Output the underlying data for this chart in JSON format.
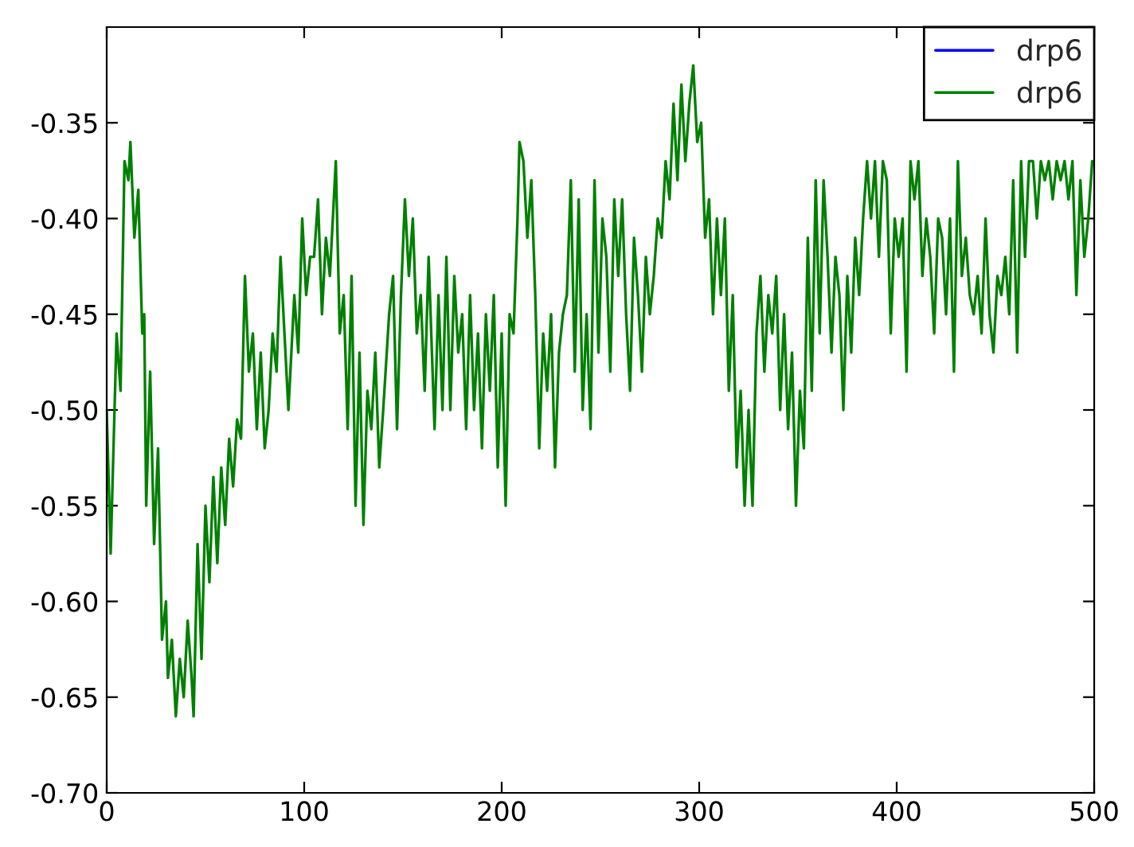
{
  "chart_data": {
    "type": "line",
    "x": [
      0,
      2,
      5,
      7,
      9,
      11,
      12,
      14,
      16,
      18,
      19,
      20,
      22,
      24,
      26,
      28,
      30,
      31,
      33,
      35,
      37,
      39,
      41,
      43,
      44,
      46,
      48,
      50,
      52,
      54,
      56,
      58,
      60,
      62,
      64,
      66,
      68,
      70,
      72,
      74,
      76,
      78,
      80,
      82,
      84,
      86,
      88,
      90,
      92,
      95,
      97,
      99,
      101,
      103,
      105,
      107,
      109,
      111,
      113,
      116,
      118,
      120,
      122,
      124,
      126,
      128,
      130,
      132,
      134,
      136,
      138,
      140,
      143,
      145,
      147,
      149,
      151,
      153,
      155,
      157,
      159,
      161,
      163,
      166,
      168,
      170,
      172,
      174,
      176,
      178,
      180,
      182,
      184,
      186,
      188,
      190,
      192,
      194,
      196,
      198,
      200,
      202,
      204,
      206,
      208,
      209,
      211,
      213,
      215,
      217,
      219,
      221,
      223,
      225,
      227,
      229,
      231,
      233,
      235,
      237,
      239,
      241,
      243,
      245,
      247,
      249,
      251,
      253,
      255,
      257,
      259,
      261,
      263,
      265,
      267,
      269,
      271,
      273,
      275,
      277,
      279,
      281,
      283,
      285,
      287,
      289,
      291,
      293,
      295,
      297,
      299,
      301,
      303,
      305,
      307,
      309,
      311,
      313,
      315,
      317,
      319,
      321,
      323,
      325,
      327,
      329,
      331,
      333,
      335,
      337,
      339,
      341,
      343,
      345,
      347,
      349,
      351,
      353,
      355,
      357,
      359,
      361,
      363,
      365,
      367,
      369,
      371,
      373,
      375,
      377,
      379,
      381,
      383,
      385,
      387,
      389,
      391,
      393,
      395,
      397,
      399,
      401,
      403,
      405,
      407,
      409,
      411,
      413,
      415,
      417,
      419,
      421,
      423,
      425,
      427,
      429,
      431,
      433,
      435,
      437,
      439,
      441,
      443,
      445,
      447,
      449,
      451,
      453,
      455,
      457,
      459,
      461,
      463,
      465,
      467,
      469,
      471,
      473,
      475,
      477,
      479,
      481,
      483,
      485,
      487,
      489,
      491,
      493,
      495,
      497,
      499
    ],
    "series": [
      {
        "name": "drp6",
        "color": "#0000ff",
        "values": [
          null,
          null,
          null,
          null,
          null,
          null,
          null,
          null,
          null,
          null,
          null,
          null,
          null,
          null,
          null,
          null,
          null,
          null,
          null,
          null,
          null,
          null,
          null,
          null,
          null,
          null,
          null,
          null,
          null,
          null,
          null,
          null,
          null,
          null,
          null,
          null,
          null,
          null,
          null,
          null,
          null,
          null,
          null,
          null,
          null,
          null,
          null,
          null,
          null,
          null,
          null,
          null,
          null,
          null,
          null,
          null,
          null,
          null,
          null,
          null,
          null,
          null,
          null,
          null,
          null,
          null,
          null,
          null,
          null,
          null,
          null,
          null,
          null,
          null,
          null,
          null,
          null,
          null,
          null,
          null,
          null,
          null,
          null,
          null,
          null,
          null,
          null,
          null,
          null,
          null,
          null,
          null,
          null,
          null,
          null,
          null,
          null,
          null,
          null,
          null,
          null,
          null,
          null,
          null,
          null,
          null,
          null,
          null,
          null,
          null,
          null,
          null,
          null,
          null,
          null,
          null,
          null,
          null,
          null,
          null,
          null,
          null,
          null,
          null,
          null,
          null,
          null,
          null,
          null,
          null,
          null,
          null,
          null,
          null,
          null,
          null,
          null,
          null,
          null,
          null,
          null,
          null,
          null,
          null,
          null,
          null,
          null,
          null,
          null,
          null,
          null,
          null,
          null,
          null,
          null,
          null,
          null,
          null,
          null,
          null,
          null,
          null,
          null,
          null,
          null,
          null,
          null,
          null,
          null,
          null,
          null,
          null,
          null,
          null,
          null,
          null,
          null,
          null,
          null,
          null,
          null,
          null,
          null,
          null,
          null,
          null,
          null,
          null,
          null,
          null,
          null,
          null,
          null,
          null,
          null,
          null,
          null,
          null,
          null,
          null,
          null,
          null,
          null,
          null,
          null,
          null,
          null,
          null,
          null,
          null,
          null,
          null,
          null,
          null,
          null,
          null,
          null,
          null,
          null,
          null,
          null,
          null,
          null,
          null,
          null,
          null,
          null,
          null,
          null,
          null,
          null,
          null,
          null,
          null,
          null,
          null,
          null,
          null,
          null,
          null,
          null,
          null,
          null,
          null,
          null,
          null,
          null,
          null,
          null,
          null,
          null
        ]
      },
      {
        "name": "drp6",
        "color": "#008000",
        "values": [
          -0.5,
          -0.575,
          -0.46,
          -0.49,
          -0.37,
          -0.38,
          -0.36,
          -0.41,
          -0.385,
          -0.46,
          -0.45,
          -0.55,
          -0.48,
          -0.57,
          -0.52,
          -0.62,
          -0.6,
          -0.64,
          -0.62,
          -0.66,
          -0.63,
          -0.65,
          -0.61,
          -0.64,
          -0.66,
          -0.57,
          -0.63,
          -0.55,
          -0.59,
          -0.535,
          -0.58,
          -0.53,
          -0.56,
          -0.515,
          -0.54,
          -0.505,
          -0.515,
          -0.43,
          -0.48,
          -0.46,
          -0.51,
          -0.47,
          -0.52,
          -0.5,
          -0.46,
          -0.48,
          -0.42,
          -0.46,
          -0.5,
          -0.44,
          -0.47,
          -0.4,
          -0.44,
          -0.42,
          -0.42,
          -0.39,
          -0.45,
          -0.41,
          -0.43,
          -0.37,
          -0.46,
          -0.44,
          -0.51,
          -0.43,
          -0.55,
          -0.47,
          -0.56,
          -0.49,
          -0.51,
          -0.47,
          -0.53,
          -0.5,
          -0.45,
          -0.43,
          -0.51,
          -0.44,
          -0.39,
          -0.43,
          -0.4,
          -0.46,
          -0.44,
          -0.49,
          -0.42,
          -0.51,
          -0.44,
          -0.5,
          -0.42,
          -0.5,
          -0.43,
          -0.47,
          -0.45,
          -0.51,
          -0.44,
          -0.5,
          -0.46,
          -0.52,
          -0.45,
          -0.49,
          -0.44,
          -0.53,
          -0.46,
          -0.55,
          -0.45,
          -0.46,
          -0.4,
          -0.36,
          -0.37,
          -0.41,
          -0.38,
          -0.44,
          -0.52,
          -0.46,
          -0.49,
          -0.45,
          -0.53,
          -0.47,
          -0.45,
          -0.44,
          -0.38,
          -0.48,
          -0.39,
          -0.5,
          -0.45,
          -0.51,
          -0.38,
          -0.47,
          -0.4,
          -0.42,
          -0.48,
          -0.39,
          -0.43,
          -0.39,
          -0.45,
          -0.49,
          -0.41,
          -0.44,
          -0.48,
          -0.42,
          -0.45,
          -0.43,
          -0.4,
          -0.41,
          -0.37,
          -0.39,
          -0.34,
          -0.38,
          -0.33,
          -0.37,
          -0.34,
          -0.32,
          -0.36,
          -0.35,
          -0.41,
          -0.39,
          -0.45,
          -0.4,
          -0.44,
          -0.4,
          -0.49,
          -0.44,
          -0.53,
          -0.49,
          -0.55,
          -0.5,
          -0.55,
          -0.46,
          -0.43,
          -0.48,
          -0.44,
          -0.46,
          -0.43,
          -0.5,
          -0.45,
          -0.51,
          -0.47,
          -0.55,
          -0.49,
          -0.52,
          -0.41,
          -0.49,
          -0.38,
          -0.46,
          -0.38,
          -0.42,
          -0.47,
          -0.42,
          -0.44,
          -0.5,
          -0.43,
          -0.47,
          -0.41,
          -0.44,
          -0.4,
          -0.37,
          -0.4,
          -0.37,
          -0.42,
          -0.37,
          -0.38,
          -0.46,
          -0.4,
          -0.42,
          -0.4,
          -0.48,
          -0.37,
          -0.39,
          -0.37,
          -0.43,
          -0.4,
          -0.42,
          -0.46,
          -0.4,
          -0.41,
          -0.45,
          -0.4,
          -0.48,
          -0.37,
          -0.43,
          -0.41,
          -0.44,
          -0.45,
          -0.43,
          -0.46,
          -0.4,
          -0.45,
          -0.47,
          -0.43,
          -0.44,
          -0.42,
          -0.45,
          -0.38,
          -0.47,
          -0.37,
          -0.42,
          -0.37,
          -0.37,
          -0.4,
          -0.37,
          -0.38,
          -0.37,
          -0.39,
          -0.37,
          -0.38,
          -0.37,
          -0.39,
          -0.37,
          -0.44,
          -0.38,
          -0.42,
          -0.4,
          -0.37
        ]
      }
    ],
    "xlim": [
      0,
      500
    ],
    "xticks": [
      0,
      100,
      200,
      300,
      400,
      500
    ],
    "ylim": [
      -0.7,
      -0.3
    ],
    "yticks": [
      {
        "value": -0.7,
        "label": "-0.70"
      },
      {
        "value": -0.65,
        "label": "-0.65"
      },
      {
        "value": -0.6,
        "label": "-0.60"
      },
      {
        "value": -0.55,
        "label": "-0.55"
      },
      {
        "value": -0.5,
        "label": "-0.50"
      },
      {
        "value": -0.45,
        "label": "-0.45"
      },
      {
        "value": -0.4,
        "label": "-0.40"
      },
      {
        "value": -0.35,
        "label": "-0.35"
      }
    ],
    "legend": "top right",
    "grid": false,
    "line_style": "solid",
    "marker": "none"
  }
}
